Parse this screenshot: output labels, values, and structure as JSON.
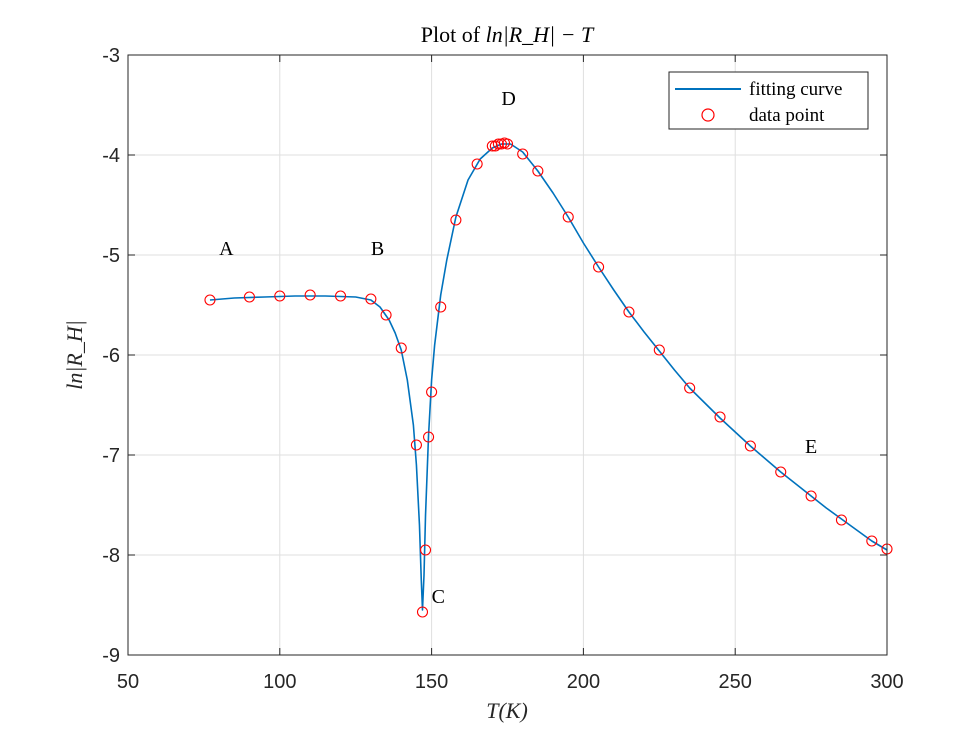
{
  "chart_data": {
    "type": "line",
    "title_prefix": "Plot of ",
    "title_math": "ln|R_H| − T",
    "xlabel": "T(K)",
    "ylabel": "ln|R_H|",
    "xlim": [
      50,
      300
    ],
    "ylim": [
      -9,
      -3
    ],
    "xticks": [
      50,
      100,
      150,
      200,
      250,
      300
    ],
    "xtick_labels": [
      "50",
      "100",
      "150",
      "200",
      "250",
      "300"
    ],
    "yticks": [
      -9,
      -8,
      -7,
      -6,
      -5,
      -4,
      -3
    ],
    "ytick_labels": [
      "-9",
      "-8",
      "-7",
      "-6",
      "-5",
      "-4",
      "-3"
    ],
    "grid": true,
    "legend_position": "top-right",
    "colors": {
      "curve": "#0072BD",
      "points": "#FF0000",
      "grid": "#DFDFDF",
      "axes": "#262626"
    },
    "series": [
      {
        "name": "fitting curve",
        "kind": "line",
        "x": [
          77,
          85,
          95,
          105,
          115,
          125,
          130,
          133,
          136,
          138,
          140,
          142,
          144,
          145,
          146,
          146.6,
          147,
          147.5,
          148,
          149,
          150,
          151,
          153,
          155,
          158,
          162,
          166,
          170,
          173,
          176,
          180,
          185,
          190,
          195,
          200,
          205,
          210,
          215,
          220,
          225,
          230,
          235,
          240,
          245,
          250,
          255,
          260,
          265,
          270,
          275,
          280,
          285,
          290,
          295,
          300
        ],
        "y": [
          -5.45,
          -5.43,
          -5.42,
          -5.41,
          -5.41,
          -5.42,
          -5.45,
          -5.52,
          -5.65,
          -5.78,
          -5.95,
          -6.25,
          -6.7,
          -7.1,
          -7.7,
          -8.25,
          -8.55,
          -8.2,
          -7.6,
          -6.8,
          -6.25,
          -5.9,
          -5.4,
          -5.05,
          -4.62,
          -4.25,
          -4.04,
          -3.93,
          -3.89,
          -3.89,
          -3.97,
          -4.16,
          -4.38,
          -4.62,
          -4.88,
          -5.12,
          -5.35,
          -5.57,
          -5.77,
          -5.96,
          -6.15,
          -6.33,
          -6.48,
          -6.63,
          -6.77,
          -6.91,
          -7.04,
          -7.17,
          -7.29,
          -7.41,
          -7.53,
          -7.64,
          -7.75,
          -7.86,
          -7.95
        ]
      },
      {
        "name": "data point",
        "kind": "scatter",
        "x": [
          77,
          90,
          100,
          110,
          120,
          130,
          135,
          140,
          145,
          147,
          148,
          149,
          150,
          153,
          158,
          165,
          170,
          171,
          172,
          173,
          174,
          175,
          180,
          185,
          195,
          205,
          215,
          225,
          235,
          245,
          255,
          265,
          275,
          285,
          295,
          300
        ],
        "y": [
          -5.45,
          -5.42,
          -5.41,
          -5.4,
          -5.41,
          -5.44,
          -5.6,
          -5.93,
          -6.9,
          -8.57,
          -7.95,
          -6.82,
          -6.37,
          -5.52,
          -4.65,
          -4.09,
          -3.91,
          -3.91,
          -3.89,
          -3.89,
          -3.88,
          -3.89,
          -3.99,
          -4.16,
          -4.62,
          -5.12,
          -5.57,
          -5.95,
          -6.33,
          -6.62,
          -6.91,
          -7.17,
          -7.41,
          -7.65,
          -7.86,
          -7.94
        ]
      }
    ],
    "annotations": [
      {
        "text": "A",
        "x": 80,
        "y": -5.0
      },
      {
        "text": "B",
        "x": 130,
        "y": -5.0
      },
      {
        "text": "C",
        "x": 150,
        "y": -8.48
      },
      {
        "text": "D",
        "x": 173,
        "y": -3.5
      },
      {
        "text": "E",
        "x": 273,
        "y": -6.98
      }
    ]
  }
}
